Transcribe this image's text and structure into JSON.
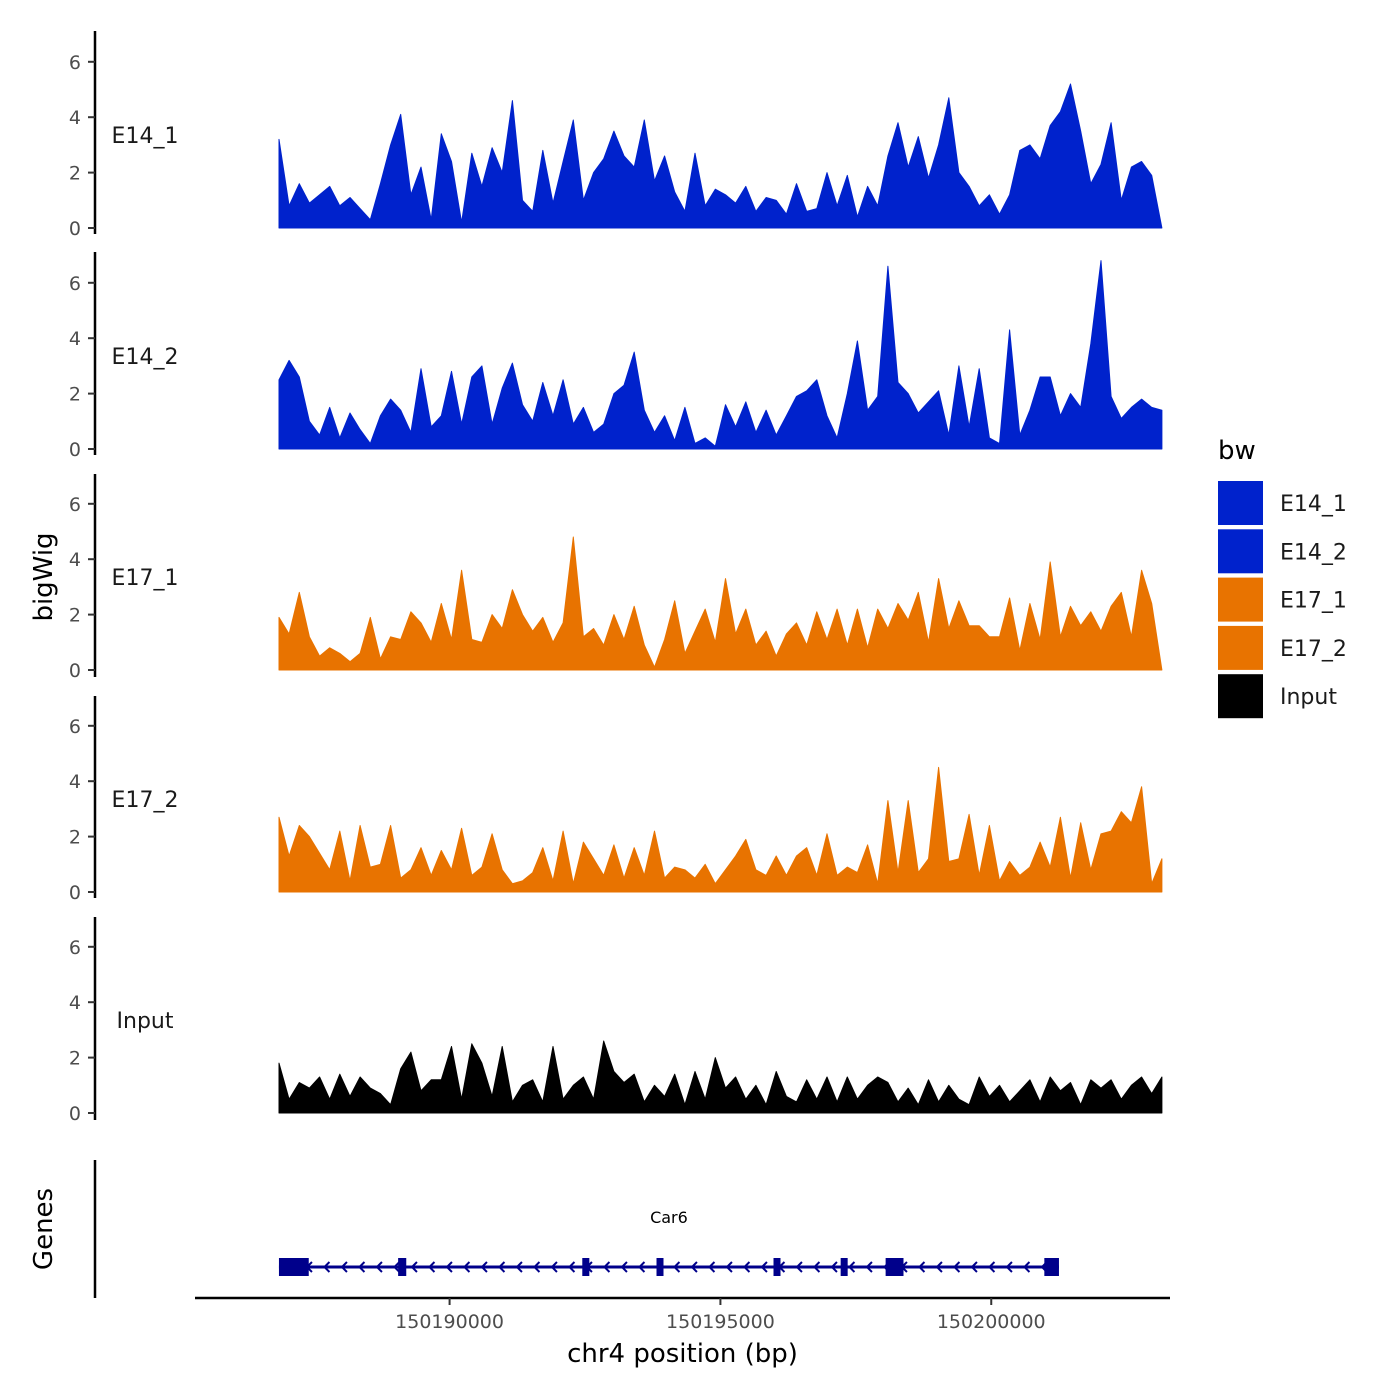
{
  "chart_data": {
    "type": "area",
    "title": "",
    "xlabel": "chr4 position (bp)",
    "ylabel": "bigWig",
    "genes_label": "Genes",
    "xlim": [
      150185300,
      150203300
    ],
    "x_start": 150186850,
    "x_end": 150203150,
    "xticks": [
      150190000,
      150195000,
      150200000
    ],
    "xtick_labels": [
      "150190000",
      "150195000",
      "150200000"
    ],
    "ylim": [
      0,
      7
    ],
    "yticks": [
      0,
      2,
      4,
      6
    ],
    "ytick_labels": [
      "0",
      "2",
      "4",
      "6"
    ],
    "colors": {
      "E14": "#0022cc",
      "E17": "#e87300",
      "Input": "#000000",
      "gene": "#00008b"
    },
    "series": [
      {
        "name": "E14_1",
        "color": "#0022cc",
        "values": [
          3.2,
          0.8,
          1.6,
          0.9,
          1.2,
          1.5,
          0.8,
          1.1,
          0.7,
          0.3,
          1.6,
          3.0,
          4.1,
          1.2,
          2.2,
          0.3,
          3.4,
          2.4,
          0.2,
          2.7,
          1.5,
          2.9,
          2.0,
          4.6,
          1.0,
          0.6,
          2.8,
          0.9,
          2.4,
          3.9,
          1.0,
          2.0,
          2.5,
          3.5,
          2.6,
          2.2,
          3.9,
          1.7,
          2.6,
          1.3,
          0.6,
          2.7,
          0.8,
          1.4,
          1.2,
          0.9,
          1.5,
          0.6,
          1.1,
          1.0,
          0.5,
          1.6,
          0.6,
          0.7,
          2.0,
          0.8,
          1.9,
          0.4,
          1.5,
          0.8,
          2.6,
          3.8,
          2.2,
          3.3,
          1.8,
          3.0,
          4.7,
          2.0,
          1.5,
          0.8,
          1.2,
          0.5,
          1.2,
          2.8,
          3.0,
          2.5,
          3.7,
          4.2,
          5.2,
          3.5,
          1.6,
          2.3,
          3.8,
          1.0,
          2.2,
          2.4,
          1.9,
          0.0
        ]
      },
      {
        "name": "E14_2",
        "color": "#0022cc",
        "values": [
          2.5,
          3.2,
          2.6,
          1.0,
          0.5,
          1.5,
          0.4,
          1.3,
          0.7,
          0.2,
          1.2,
          1.8,
          1.4,
          0.6,
          2.9,
          0.8,
          1.2,
          2.8,
          0.9,
          2.6,
          3.0,
          0.9,
          2.2,
          3.1,
          1.6,
          1.0,
          2.4,
          1.2,
          2.5,
          0.9,
          1.5,
          0.6,
          0.9,
          2.0,
          2.3,
          3.5,
          1.4,
          0.6,
          1.2,
          0.3,
          1.5,
          0.2,
          0.4,
          0.1,
          1.6,
          0.8,
          1.7,
          0.6,
          1.4,
          0.5,
          1.2,
          1.9,
          2.1,
          2.5,
          1.2,
          0.4,
          2.0,
          3.9,
          1.4,
          1.9,
          6.6,
          2.4,
          2.0,
          1.3,
          1.7,
          2.1,
          0.5,
          3.0,
          0.8,
          2.9,
          0.4,
          0.2,
          4.3,
          0.5,
          1.4,
          2.6,
          2.6,
          1.2,
          2.0,
          1.5,
          3.8,
          6.8,
          1.9,
          1.1,
          1.5,
          1.8,
          1.5,
          1.4
        ]
      },
      {
        "name": "E17_1",
        "color": "#e87300",
        "values": [
          1.9,
          1.3,
          2.8,
          1.2,
          0.5,
          0.8,
          0.6,
          0.3,
          0.6,
          1.9,
          0.4,
          1.2,
          1.1,
          2.1,
          1.7,
          1.0,
          2.4,
          1.1,
          3.6,
          1.1,
          1.0,
          2.0,
          1.5,
          2.9,
          2.0,
          1.4,
          1.9,
          1.0,
          1.7,
          4.8,
          1.2,
          1.5,
          0.9,
          2.0,
          1.1,
          2.3,
          0.9,
          0.1,
          1.1,
          2.5,
          0.6,
          1.4,
          2.2,
          1.0,
          3.3,
          1.3,
          2.2,
          0.9,
          1.4,
          0.5,
          1.3,
          1.7,
          0.9,
          2.1,
          1.1,
          2.2,
          0.9,
          2.2,
          0.8,
          2.2,
          1.5,
          2.4,
          1.8,
          2.8,
          1.0,
          3.3,
          1.5,
          2.5,
          1.6,
          1.6,
          1.2,
          1.2,
          2.6,
          0.7,
          2.4,
          1.1,
          3.9,
          1.2,
          2.3,
          1.6,
          2.1,
          1.4,
          2.3,
          2.8,
          1.2,
          3.6,
          2.4,
          0.0
        ]
      },
      {
        "name": "E17_2",
        "color": "#e87300",
        "values": [
          2.7,
          1.3,
          2.4,
          2.0,
          1.4,
          0.8,
          2.2,
          0.4,
          2.4,
          0.9,
          1.0,
          2.4,
          0.5,
          0.8,
          1.6,
          0.6,
          1.5,
          0.8,
          2.3,
          0.6,
          0.9,
          2.1,
          0.8,
          0.3,
          0.4,
          0.7,
          1.6,
          0.4,
          2.2,
          0.3,
          1.8,
          1.2,
          0.6,
          1.7,
          0.5,
          1.6,
          0.6,
          2.2,
          0.5,
          0.9,
          0.8,
          0.5,
          1.0,
          0.3,
          0.8,
          1.3,
          1.9,
          0.8,
          0.6,
          1.3,
          0.6,
          1.3,
          1.6,
          0.6,
          2.1,
          0.6,
          0.9,
          0.7,
          1.7,
          0.3,
          3.3,
          0.7,
          3.3,
          0.7,
          1.2,
          4.5,
          1.1,
          1.2,
          2.8,
          0.6,
          2.4,
          0.4,
          1.1,
          0.6,
          0.9,
          1.8,
          0.9,
          2.7,
          0.5,
          2.5,
          0.8,
          2.1,
          2.2,
          2.9,
          2.5,
          3.8,
          0.3,
          1.2
        ]
      },
      {
        "name": "Input",
        "color": "#000000",
        "values": [
          1.8,
          0.5,
          1.1,
          0.9,
          1.3,
          0.5,
          1.4,
          0.6,
          1.3,
          0.9,
          0.7,
          0.3,
          1.6,
          2.2,
          0.8,
          1.2,
          1.2,
          2.4,
          0.5,
          2.5,
          1.8,
          0.6,
          2.4,
          0.4,
          1.0,
          1.2,
          0.4,
          2.4,
          0.5,
          1.0,
          1.3,
          0.5,
          2.6,
          1.5,
          1.1,
          1.4,
          0.4,
          1.0,
          0.6,
          1.4,
          0.3,
          1.5,
          0.5,
          2.0,
          0.9,
          1.3,
          0.5,
          1.0,
          0.3,
          1.5,
          0.6,
          0.4,
          1.2,
          0.5,
          1.3,
          0.4,
          1.3,
          0.5,
          1.0,
          1.3,
          1.1,
          0.4,
          0.9,
          0.3,
          1.2,
          0.4,
          1.0,
          0.5,
          0.3,
          1.3,
          0.6,
          1.0,
          0.4,
          0.8,
          1.2,
          0.4,
          1.3,
          0.8,
          1.1,
          0.3,
          1.2,
          0.9,
          1.2,
          0.5,
          1.0,
          1.3,
          0.7,
          1.3
        ]
      }
    ],
    "legend": {
      "title": "bw",
      "position": "right",
      "entries": [
        {
          "label": "E14_1",
          "color": "#0022cc"
        },
        {
          "label": "E14_2",
          "color": "#0022cc"
        },
        {
          "label": "E17_1",
          "color": "#e87300"
        },
        {
          "label": "E17_2",
          "color": "#e87300"
        },
        {
          "label": "Input",
          "color": "#000000"
        }
      ]
    },
    "gene": {
      "name": "Car6",
      "strand": "-",
      "start": 150186850,
      "end": 150201250,
      "exons": [
        [
          150186850,
          150187400
        ],
        [
          150189050,
          150189200
        ],
        [
          150192450,
          150192580
        ],
        [
          150193820,
          150193880
        ],
        [
          150195980,
          150196050
        ],
        [
          150197220,
          150197340
        ],
        [
          150198050,
          150198380
        ],
        [
          150200980,
          150201250
        ]
      ]
    }
  }
}
